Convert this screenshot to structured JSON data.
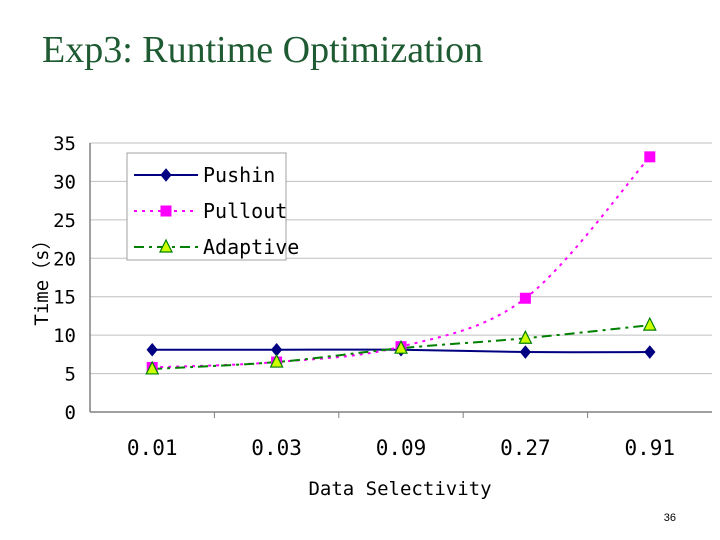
{
  "slide": {
    "title": "Exp3: Runtime Optimization",
    "page_number": "36"
  },
  "chart_data": {
    "type": "line",
    "xlabel": "Data Selectivity",
    "ylabel": "Time（s）",
    "categories": [
      "0.01",
      "0.03",
      "0.09",
      "0.27",
      "0.91"
    ],
    "ylim": [
      0,
      35
    ],
    "yticks": [
      "0",
      "5",
      "10",
      "15",
      "20",
      "25",
      "30",
      "35"
    ],
    "grid": "horizontal",
    "legend_position": "top-left",
    "series": [
      {
        "name": "Pushin",
        "values": [
          8.1,
          8.1,
          8.1,
          7.8,
          7.8
        ],
        "color": "#000080",
        "line": "solid",
        "marker": "diamond"
      },
      {
        "name": "Pullout",
        "values": [
          5.8,
          6.5,
          8.5,
          14.8,
          33.2
        ],
        "color": "#ff00ff",
        "line": "dotted",
        "marker": "square"
      },
      {
        "name": "Adaptive",
        "values": [
          5.6,
          6.5,
          8.3,
          9.6,
          11.3
        ],
        "color": "#008000",
        "line": "dashdot",
        "marker": "triangle",
        "marker_fill": "#ccff00"
      }
    ]
  }
}
